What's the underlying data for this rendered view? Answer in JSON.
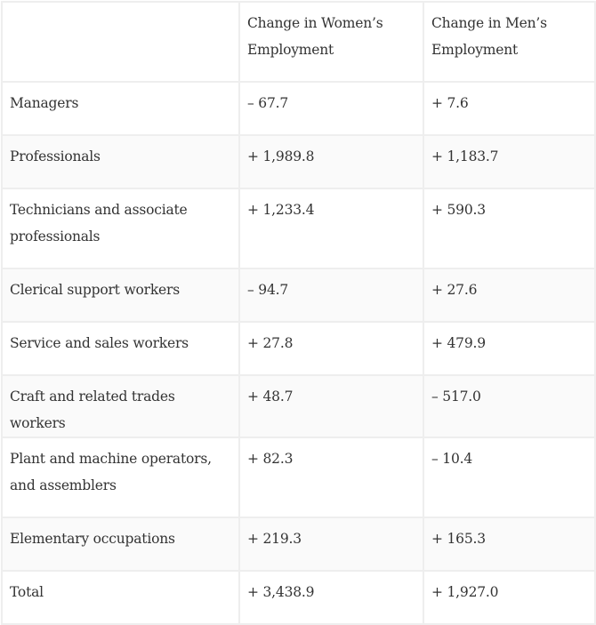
{
  "table": {
    "headers": [
      "",
      "Change in Women’s Employment",
      "Change in Men’s Employment"
    ],
    "rows": [
      {
        "occupation": "Managers",
        "women": "– 67.7",
        "men": "+ 7.6"
      },
      {
        "occupation": "Professionals",
        "women": "+ 1,989.8",
        "men": "+ 1,183.7"
      },
      {
        "occupation": "Technicians and associate professionals",
        "women": "+ 1,233.4",
        "men": "+ 590.3"
      },
      {
        "occupation": "Clerical support workers",
        "women": "– 94.7",
        "men": "+ 27.6"
      },
      {
        "occupation": "Service and sales workers",
        "women": "+ 27.8",
        "men": "+ 479.9"
      },
      {
        "occupation": "Craft and related trades workers",
        "women": "+ 48.7",
        "men": "– 517.0"
      },
      {
        "occupation": "Plant and machine operators, and assemblers",
        "women": "+ 82.3",
        "men": "– 10.4"
      },
      {
        "occupation": "Elementary occupations",
        "women": "+ 219.3",
        "men": "+ 165.3"
      },
      {
        "occupation": "Total",
        "women": "+ 3,438.9",
        "men": "+ 1,927.0"
      }
    ]
  }
}
